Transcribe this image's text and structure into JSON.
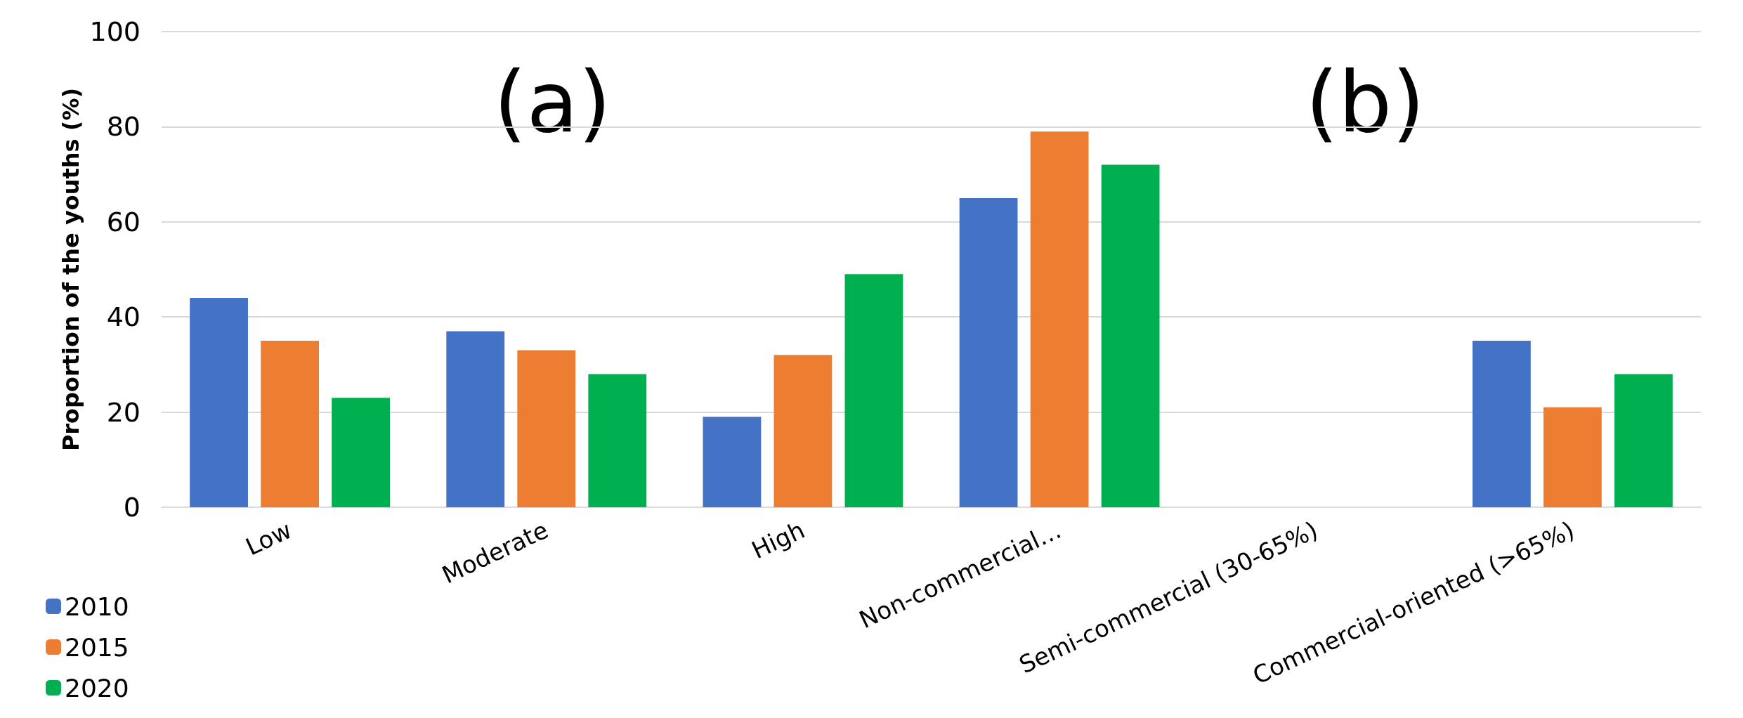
{
  "chart_data": {
    "type": "bar",
    "ylabel": "Proportion of the youths (%)",
    "categories": [
      "Low",
      "Moderate",
      "High",
      "Non-commercial…",
      "Semi-commercial (30-65%)",
      "Commercial-oriented (>65%)"
    ],
    "series": [
      {
        "name": "2010",
        "color": "#4472c4",
        "values": [
          44,
          37,
          19,
          65,
          null,
          35
        ]
      },
      {
        "name": "2015",
        "color": "#ed7d31",
        "values": [
          35,
          33,
          32,
          79,
          null,
          21
        ]
      },
      {
        "name": "2020",
        "color": "#00b050",
        "values": [
          23,
          28,
          49,
          72,
          null,
          28
        ]
      }
    ],
    "ylim": [
      0,
      100
    ],
    "yticks": [
      0,
      20,
      40,
      60,
      80,
      100
    ],
    "grid": "y",
    "legend": "bottom left",
    "annotations": [
      "(a)",
      "(b)"
    ]
  }
}
